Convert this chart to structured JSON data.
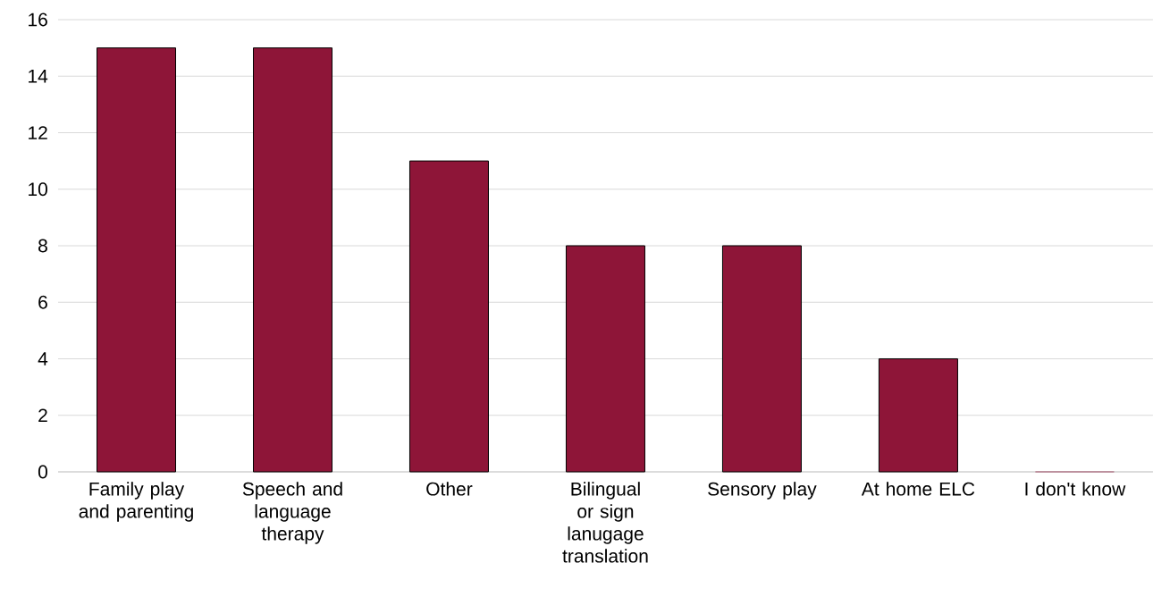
{
  "chart_data": {
    "type": "bar",
    "categories": [
      "Family play and parenting",
      "Speech and language therapy",
      "Other",
      "Bilingual or sign lanugage translation",
      "Sensory play",
      "At home ELC",
      "I don't know"
    ],
    "values": [
      15,
      15,
      11,
      8,
      8,
      4,
      0
    ],
    "color": "#8e1538",
    "ylim": [
      0,
      16
    ],
    "yticks": [
      0,
      2,
      4,
      6,
      8,
      10,
      12,
      14,
      16
    ],
    "grid": "y"
  }
}
